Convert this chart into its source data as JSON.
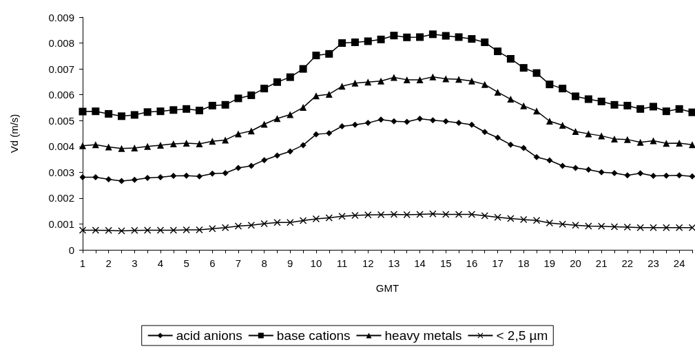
{
  "chart_data": {
    "type": "line",
    "xlabel": "GMT",
    "ylabel": "Vd (m/s)",
    "x": [
      1,
      1.5,
      2,
      2.5,
      3,
      3.5,
      4,
      4.5,
      5,
      5.5,
      6,
      6.5,
      7,
      7.5,
      8,
      8.5,
      9,
      9.5,
      10,
      10.5,
      11,
      11.5,
      12,
      12.5,
      13,
      13.5,
      14,
      14.5,
      15,
      15.5,
      16,
      16.5,
      17,
      17.5,
      18,
      18.5,
      19,
      19.5,
      20,
      20.5,
      21,
      21.5,
      22,
      22.5,
      23,
      23.5,
      24,
      24.5
    ],
    "series": [
      {
        "name": "acid anions",
        "color": "#000000",
        "marker": "diamond",
        "values": [
          0.00281,
          0.00281,
          0.00273,
          0.00266,
          0.00271,
          0.00278,
          0.00281,
          0.00286,
          0.00287,
          0.00284,
          0.00295,
          0.00297,
          0.00317,
          0.00325,
          0.00347,
          0.00365,
          0.00381,
          0.00405,
          0.00447,
          0.00451,
          0.00478,
          0.00484,
          0.00491,
          0.00504,
          0.00497,
          0.00495,
          0.00507,
          0.00501,
          0.00497,
          0.00491,
          0.00484,
          0.00456,
          0.00434,
          0.00407,
          0.00394,
          0.00359,
          0.00346,
          0.00325,
          0.00317,
          0.0031,
          0.003,
          0.00297,
          0.00288,
          0.00296,
          0.00286,
          0.00287,
          0.00288,
          0.00284
        ]
      },
      {
        "name": "base cations",
        "color": "#000000",
        "marker": "square",
        "values": [
          0.00535,
          0.00536,
          0.00526,
          0.00517,
          0.00522,
          0.00533,
          0.00536,
          0.00541,
          0.00545,
          0.00539,
          0.00558,
          0.00561,
          0.00586,
          0.00598,
          0.00624,
          0.00649,
          0.00668,
          0.007,
          0.00752,
          0.00758,
          0.008,
          0.00803,
          0.00807,
          0.00814,
          0.00829,
          0.00822,
          0.00823,
          0.00834,
          0.00828,
          0.00823,
          0.00816,
          0.00803,
          0.00768,
          0.00739,
          0.00704,
          0.00684,
          0.0064,
          0.00624,
          0.00594,
          0.00583,
          0.00574,
          0.00561,
          0.00558,
          0.00545,
          0.00554,
          0.00536,
          0.00545,
          0.00532
        ]
      },
      {
        "name": "heavy metals",
        "color": "#000000",
        "marker": "triangle",
        "values": [
          0.00403,
          0.00407,
          0.00398,
          0.00392,
          0.00394,
          0.004,
          0.00405,
          0.0041,
          0.00413,
          0.0041,
          0.0042,
          0.00425,
          0.00449,
          0.0046,
          0.00486,
          0.00508,
          0.00523,
          0.00551,
          0.00596,
          0.00602,
          0.00633,
          0.00645,
          0.00649,
          0.00653,
          0.00667,
          0.00658,
          0.00658,
          0.00669,
          0.00662,
          0.0066,
          0.00653,
          0.0064,
          0.0061,
          0.00583,
          0.00557,
          0.00537,
          0.00498,
          0.00482,
          0.00458,
          0.00449,
          0.00441,
          0.00429,
          0.00427,
          0.00416,
          0.00422,
          0.00412,
          0.00413,
          0.00407
        ]
      },
      {
        "name": "< 2,5 µm",
        "color": "#000000",
        "marker": "cross",
        "values": [
          0.00076,
          0.00076,
          0.00075,
          0.00073,
          0.00075,
          0.00076,
          0.00076,
          0.00076,
          0.00077,
          0.00077,
          0.00082,
          0.00086,
          0.00092,
          0.00095,
          0.00101,
          0.00106,
          0.00106,
          0.00113,
          0.0012,
          0.00124,
          0.0013,
          0.00133,
          0.00135,
          0.00136,
          0.00137,
          0.00136,
          0.00137,
          0.00139,
          0.00137,
          0.00137,
          0.00137,
          0.00132,
          0.00126,
          0.00121,
          0.00117,
          0.00114,
          0.00104,
          0.00099,
          0.00095,
          0.00092,
          0.00091,
          0.00089,
          0.00088,
          0.00086,
          0.00086,
          0.00086,
          0.00086,
          0.00086
        ]
      }
    ],
    "xlim": [
      1,
      24.5
    ],
    "xticks": [
      1,
      {
        "value": 1.5,
        "label": null
      },
      2,
      {
        "value": 2.5,
        "label": null
      },
      3,
      {
        "value": 3.5,
        "label": null
      },
      4,
      {
        "value": 4.5,
        "label": null
      },
      5,
      {
        "value": 5.5,
        "label": null
      },
      6,
      {
        "value": 6.5,
        "label": null
      },
      7,
      {
        "value": 7.5,
        "label": null
      },
      8,
      {
        "value": 8.5,
        "label": null
      },
      9,
      {
        "value": 9.5,
        "label": null
      },
      10,
      {
        "value": 10.5,
        "label": null
      },
      11,
      {
        "value": 11.5,
        "label": null
      },
      12,
      {
        "value": 12.5,
        "label": null
      },
      13,
      {
        "value": 13.5,
        "label": null
      },
      14,
      {
        "value": 14.5,
        "label": null
      },
      15,
      {
        "value": 15.5,
        "label": null
      },
      16,
      {
        "value": 16.5,
        "label": null
      },
      17,
      {
        "value": 17.5,
        "label": null
      },
      18,
      {
        "value": 18.5,
        "label": null
      },
      19,
      {
        "value": 19.5,
        "label": null
      },
      20,
      {
        "value": 20.5,
        "label": null
      },
      21,
      {
        "value": 21.5,
        "label": null
      },
      22,
      {
        "value": 22.5,
        "label": null
      },
      23,
      {
        "value": 23.5,
        "label": null
      },
      24,
      {
        "value": 24.5,
        "label": null
      }
    ],
    "ylim": [
      0,
      0.009
    ],
    "yticks": [
      0,
      0.001,
      0.002,
      0.003,
      0.004,
      0.005,
      0.006,
      0.007,
      0.008,
      0.009
    ],
    "grid": false,
    "legend": "bottom",
    "line_style": "solid"
  }
}
